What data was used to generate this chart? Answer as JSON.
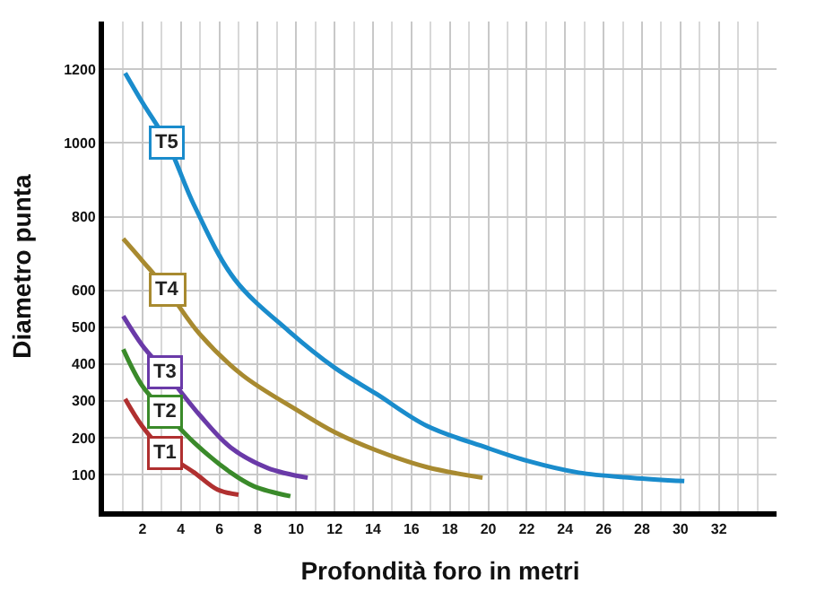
{
  "chart_data": {
    "type": "line",
    "xlabel": "Profondità foro in metri",
    "ylabel": "Diametro punta",
    "xlim": [
      0,
      35
    ],
    "xticks": [
      2,
      4,
      6,
      8,
      10,
      12,
      14,
      16,
      18,
      20,
      22,
      24,
      26,
      28,
      30,
      32
    ],
    "ylim": [
      0,
      1330
    ],
    "yticks": [
      100,
      200,
      300,
      400,
      500,
      600,
      800,
      1000,
      1200
    ],
    "grid": true,
    "legend": false,
    "marker": "none",
    "line_style": "solid",
    "series": [
      {
        "name": "T1",
        "color": "#b03030",
        "x": [
          1.1,
          2,
          3.2,
          4.7,
          5.9,
          7.0
        ],
        "values": [
          305,
          230,
          159,
          105,
          59,
          45
        ]
      },
      {
        "name": "T2",
        "color": "#3a8a2a",
        "x": [
          1.0,
          2,
          3.2,
          4.7,
          6.6,
          7.8,
          9.7
        ],
        "values": [
          440,
          340,
          268,
          186,
          105,
          68,
          41
        ]
      },
      {
        "name": "T3",
        "color": "#6a3aa8",
        "x": [
          1.0,
          2,
          3.2,
          5,
          6.6,
          8.5,
          10.6
        ],
        "values": [
          530,
          450,
          377,
          260,
          173,
          118,
          91
        ]
      },
      {
        "name": "T4",
        "color": "#a88a30",
        "x": [
          1.0,
          2,
          3.3,
          5,
          7.2,
          10.1,
          12,
          14.2,
          16.8,
          19.7
        ],
        "values": [
          740,
          680,
          600,
          480,
          370,
          273,
          215,
          165,
          120,
          91
        ]
      },
      {
        "name": "T5",
        "color": "#1a8ccc",
        "x": [
          1.1,
          2,
          3.3,
          4.7,
          6.8,
          9.6,
          12,
          14.2,
          16.8,
          19.9,
          22.1,
          24.7,
          27.5,
          30.2
        ],
        "values": [
          1190,
          1110,
          1000,
          830,
          630,
          490,
          390,
          318,
          232,
          173,
          136,
          105,
          91,
          82
        ]
      }
    ]
  }
}
